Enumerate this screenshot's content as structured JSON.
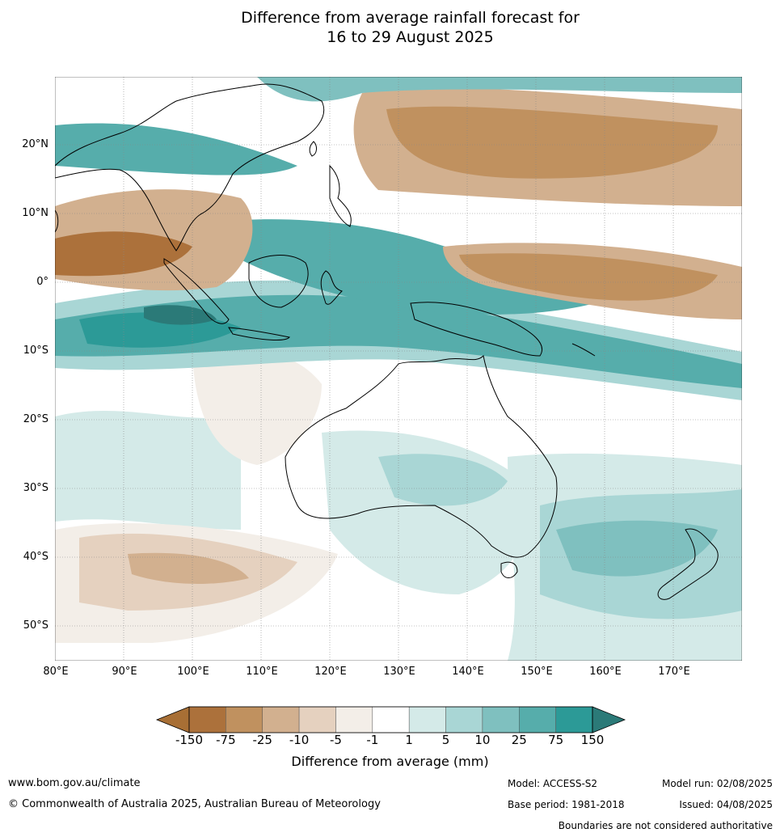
{
  "title_line1": "Difference from average rainfall forecast for",
  "title_line2": "16 to 29 August 2025",
  "lat_ticks": [
    "20°N",
    "10°N",
    "0°",
    "10°S",
    "20°S",
    "30°S",
    "40°S",
    "50°S"
  ],
  "lon_ticks": [
    "80°E",
    "90°E",
    "100°E",
    "110°E",
    "120°E",
    "130°E",
    "140°E",
    "150°E",
    "160°E",
    "170°E"
  ],
  "colorbar": {
    "label": "Difference from average (mm)",
    "ticks": [
      "-150",
      "-75",
      "-25",
      "-10",
      "-5",
      "-1",
      "1",
      "5",
      "10",
      "25",
      "75",
      "150"
    ],
    "colors": [
      "#a86f35",
      "#ac713b",
      "#c0915f",
      "#d2b08f",
      "#e5d1bf",
      "#f3eee8",
      "#ffffff",
      "#d4eae8",
      "#a9d6d5",
      "#7fc0bf",
      "#56adab",
      "#2c9a97",
      "#2b7a78"
    ]
  },
  "footer": {
    "website": "www.bom.gov.au/climate",
    "copyright": "© Commonwealth of Australia 2025, Australian Bureau of Meteorology",
    "model": "Model: ACCESS-S2",
    "base_period": "Base period: 1981-2018",
    "model_run": "Model run: 02/08/2025",
    "issued": "Issued: 04/08/2025",
    "boundaries": "Boundaries are not considered authoritative"
  }
}
